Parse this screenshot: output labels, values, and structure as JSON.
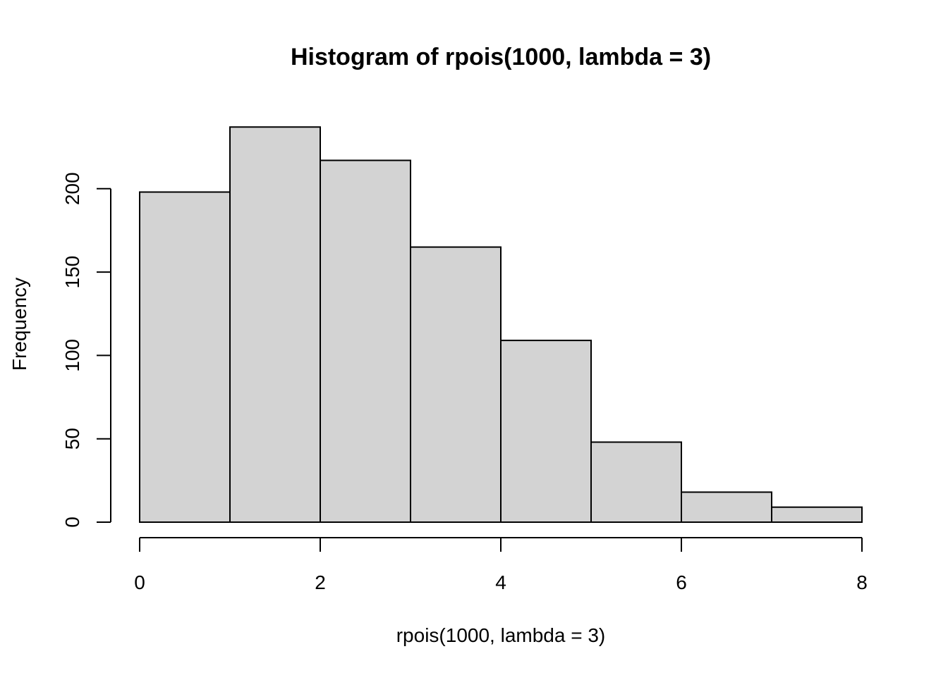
{
  "chart_data": {
    "type": "bar",
    "title": "Histogram of rpois(1000, lambda = 3)",
    "xlabel": "rpois(1000, lambda = 3)",
    "ylabel": "Frequency",
    "bins": [
      [
        0,
        1
      ],
      [
        1,
        2
      ],
      [
        2,
        3
      ],
      [
        3,
        4
      ],
      [
        4,
        5
      ],
      [
        5,
        6
      ],
      [
        6,
        7
      ],
      [
        7,
        8
      ]
    ],
    "values": [
      198,
      237,
      217,
      165,
      109,
      48,
      18,
      9
    ],
    "xlim": [
      0,
      8
    ],
    "ylim": [
      0,
      237
    ],
    "x_ticks": [
      0,
      2,
      4,
      6,
      8
    ],
    "x_tick_labels": [
      "0",
      "2",
      "4",
      "6",
      "8"
    ],
    "y_ticks": [
      0,
      50,
      100,
      150,
      200
    ],
    "y_tick_labels": [
      "0",
      "50",
      "100",
      "150",
      "200"
    ],
    "bar_color": "#d3d3d3",
    "border_color": "#000000",
    "grid": false
  }
}
